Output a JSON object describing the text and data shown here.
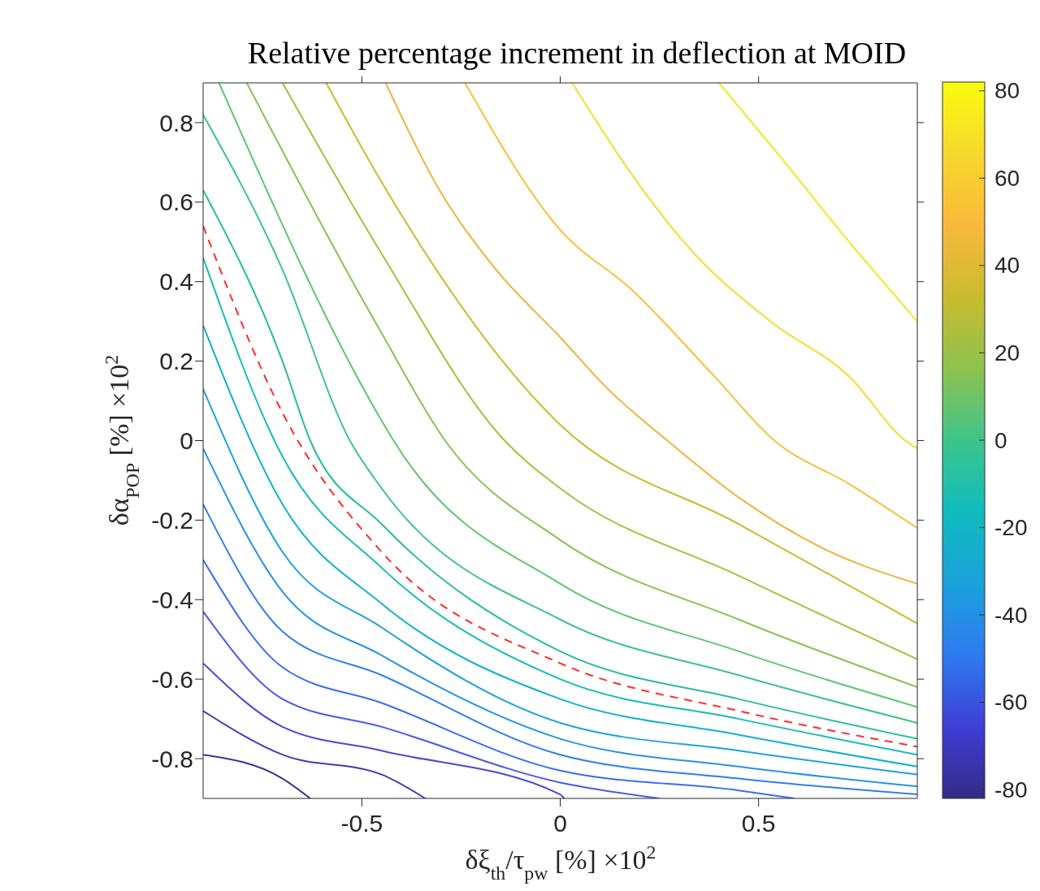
{
  "chart_data": {
    "type": "line",
    "title": "Relative percentage increment in deflection at MOID",
    "xlabel": "δξ$_{th}$/τ$_{pw}$ [%] ×10$^{2}$",
    "ylabel": "δα$_{POP}$ [%] ×10$^{2}$",
    "xlim": [
      -0.9,
      0.9
    ],
    "ylim": [
      -0.9,
      0.9
    ],
    "xticks": [
      -0.5,
      0,
      0.5
    ],
    "yticks": [
      -0.8,
      -0.6,
      -0.4,
      -0.2,
      0,
      0.2,
      0.4,
      0.6,
      0.8
    ],
    "clim": [
      -82,
      82
    ],
    "cticks": [
      -80,
      -60,
      -40,
      -20,
      0,
      20,
      40,
      60,
      80
    ],
    "grid": false,
    "series": [
      {
        "color": "#f5e61e",
        "x": [
          0.4,
          0.55,
          0.72,
          0.9
        ],
        "values": [
          0.9,
          0.72,
          0.51,
          0.3
        ]
      },
      {
        "color": "#f4dc2c",
        "x": [
          0.03,
          0.18,
          0.32,
          0.53,
          0.73,
          0.87,
          0.9
        ],
        "values": [
          0.9,
          0.67,
          0.49,
          0.3,
          0.16,
          0.0,
          -0.02
        ]
      },
      {
        "color": "#f8c03a",
        "x": [
          -0.24,
          0,
          0.18,
          0.39,
          0.54,
          0.73,
          0.9
        ],
        "values": [
          0.9,
          0.53,
          0.38,
          0.16,
          0.0,
          -0.11,
          -0.22
        ]
      },
      {
        "color": "#eeb43c",
        "x": [
          -0.44,
          -0.31,
          -0.17,
          0,
          0.12,
          0.27,
          0.46,
          0.66,
          0.9
        ],
        "values": [
          0.9,
          0.64,
          0.44,
          0.26,
          0.13,
          0.0,
          -0.15,
          -0.27,
          -0.36
        ]
      },
      {
        "color": "#ccba2e",
        "x": [
          -0.59,
          -0.45,
          0,
          0.45,
          0.9
        ],
        "values": [
          0.9,
          0.65,
          0.04,
          -0.21,
          -0.46
        ]
      },
      {
        "color": "#a6bf3c",
        "x": [
          -0.7,
          -0.45,
          -0.14,
          0,
          0.45,
          0.9
        ],
        "values": [
          0.9,
          0.47,
          0.0,
          -0.12,
          -0.34,
          -0.55
        ]
      },
      {
        "color": "#86c352",
        "x": [
          -0.79,
          -0.45,
          -0.29,
          0,
          0.45,
          0.9
        ],
        "values": [
          0.9,
          0.27,
          0.0,
          -0.25,
          -0.45,
          -0.62
        ]
      },
      {
        "color": "#5ec86c",
        "x": [
          -0.86,
          -0.45,
          -0.42,
          0,
          0.45,
          0.9
        ],
        "values": [
          0.9,
          0.05,
          0.0,
          -0.36,
          -0.53,
          -0.67
        ]
      },
      {
        "color": "#3ec484",
        "x": [
          -0.9,
          -0.7,
          -0.53,
          -0.45,
          0,
          0.45,
          0.9
        ],
        "values": [
          0.82,
          0.43,
          0.0,
          -0.12,
          -0.45,
          -0.59,
          -0.71
        ]
      },
      {
        "color": "#27be9a",
        "x": [
          -0.9,
          -0.7,
          -0.63,
          -0.45,
          0,
          0.45,
          0.9
        ],
        "values": [
          0.63,
          0.2,
          0.0,
          -0.21,
          -0.53,
          -0.65,
          -0.75
        ]
      },
      {
        "color": "#ff2b2b",
        "line_style": "dashed",
        "x": [
          -0.9,
          -0.7,
          -0.45,
          0,
          0.45,
          0.9
        ],
        "values": [
          0.54,
          0.07,
          -0.28,
          -0.56,
          -0.68,
          -0.77
        ]
      },
      {
        "color": "#14bcb8",
        "x": [
          -0.9,
          -0.7,
          -0.45,
          0,
          0.45,
          0.9
        ],
        "values": [
          0.46,
          -0.04,
          -0.32,
          -0.6,
          -0.7,
          -0.79
        ]
      },
      {
        "color": "#10b1d0",
        "x": [
          -0.9,
          -0.7,
          -0.45,
          0,
          0.45,
          0.9
        ],
        "values": [
          0.29,
          -0.16,
          -0.41,
          -0.65,
          -0.74,
          -0.82
        ]
      },
      {
        "color": "#1ca2de",
        "x": [
          -0.9,
          -0.7,
          -0.45,
          0,
          0.45,
          0.9
        ],
        "values": [
          0.13,
          -0.28,
          -0.47,
          -0.71,
          -0.78,
          -0.84
        ]
      },
      {
        "color": "#2792e6",
        "x": [
          -0.9,
          -0.7,
          -0.45,
          0,
          0.45,
          0.9
        ],
        "values": [
          -0.02,
          -0.38,
          -0.54,
          -0.75,
          -0.82,
          -0.87
        ]
      },
      {
        "color": "#2f7eef",
        "x": [
          -0.9,
          -0.7,
          -0.45,
          0,
          0.45,
          0.9
        ],
        "values": [
          -0.16,
          -0.48,
          -0.59,
          -0.79,
          -0.85,
          -0.89
        ]
      },
      {
        "color": "#3a6cf5",
        "x": [
          -0.9,
          -0.7,
          -0.45,
          0,
          0.45,
          0.59
        ],
        "values": [
          -0.3,
          -0.57,
          -0.66,
          -0.83,
          -0.88,
          -0.9
        ]
      },
      {
        "color": "#4758f0",
        "x": [
          -0.9,
          -0.7,
          -0.45,
          0,
          0.25
        ],
        "values": [
          -0.43,
          -0.65,
          -0.72,
          -0.86,
          -0.9
        ]
      },
      {
        "color": "#4a47d8",
        "x": [
          -0.9,
          -0.7,
          -0.45,
          0,
          0.01
        ],
        "values": [
          -0.56,
          -0.72,
          -0.78,
          -0.89,
          -0.9
        ]
      },
      {
        "color": "#4538b8",
        "x": [
          -0.9,
          -0.7,
          -0.45,
          -0.34
        ],
        "values": [
          -0.68,
          -0.79,
          -0.84,
          -0.9
        ]
      },
      {
        "color": "#3e2e98",
        "x": [
          -0.9,
          -0.7,
          -0.63
        ],
        "values": [
          -0.79,
          -0.85,
          -0.9
        ]
      }
    ]
  }
}
